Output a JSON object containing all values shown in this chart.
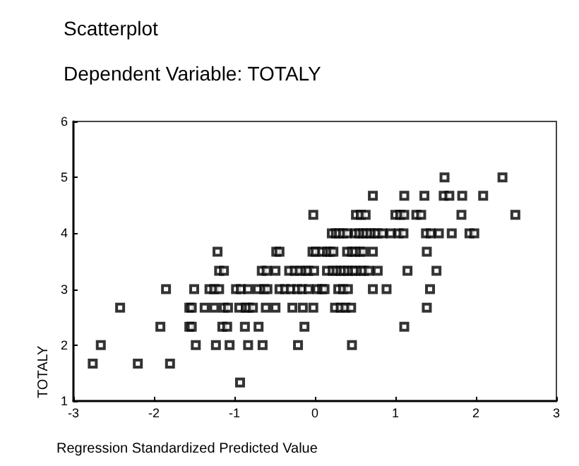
{
  "chart_data": {
    "type": "scatter",
    "title": "Scatterplot",
    "subtitle": "Dependent Variable: TOTALY",
    "xlabel": "Regression Standardized Predicted Value",
    "ylabel": "TOTALY",
    "xlim": [
      -3,
      3
    ],
    "ylim": [
      1,
      6
    ],
    "xticks": [
      -3,
      -2,
      -1,
      0,
      1,
      2,
      3
    ],
    "yticks": [
      1,
      2,
      3,
      4,
      5,
      6
    ],
    "grid": false,
    "marker": "square",
    "series": [
      {
        "color": "#000000",
        "x": [
          -2.76,
          -2.2,
          -1.8,
          -0.93,
          -2.66,
          -1.48,
          -1.23,
          -1.06,
          -0.83,
          -0.65,
          -0.21,
          0.46,
          -1.92,
          -1.56,
          -1.53,
          -1.15,
          -1.09,
          -0.87,
          -0.7,
          -0.13,
          1.11,
          -2.42,
          -1.56,
          -1.53,
          -1.37,
          -1.25,
          -1.13,
          -1.08,
          -0.94,
          -0.86,
          -0.82,
          -0.77,
          -0.61,
          -0.49,
          -0.28,
          -0.15,
          -0.02,
          0.25,
          0.32,
          0.38,
          0.45,
          1.39,
          -1.85,
          -1.5,
          -1.31,
          -1.25,
          -1.19,
          -0.98,
          -0.92,
          -0.83,
          -0.71,
          -0.63,
          -0.59,
          -0.44,
          -0.37,
          -0.3,
          -0.22,
          -0.16,
          -0.08,
          0.03,
          0.09,
          0.12,
          0.29,
          0.35,
          0.41,
          0.72,
          0.89,
          1.43,
          -1.19,
          -1.13,
          -0.66,
          -0.6,
          -0.49,
          -0.32,
          -0.25,
          -0.19,
          -0.12,
          -0.08,
          -0.01,
          0.15,
          0.22,
          0.27,
          0.32,
          0.36,
          0.41,
          0.46,
          0.5,
          0.57,
          0.61,
          0.67,
          0.78,
          1.15,
          1.51,
          -1.21,
          -0.48,
          -0.44,
          -0.03,
          0.01,
          0.09,
          0.15,
          0.19,
          0.23,
          0.4,
          0.46,
          0.5,
          0.56,
          0.6,
          0.72,
          1.39,
          0.21,
          0.26,
          0.3,
          0.35,
          0.4,
          0.5,
          0.55,
          0.6,
          0.64,
          0.69,
          0.74,
          0.78,
          0.84,
          0.94,
          1.04,
          1.1,
          1.38,
          1.44,
          1.54,
          1.7,
          1.92,
          1.98,
          -0.02,
          0.51,
          0.57,
          0.63,
          1.0,
          1.06,
          1.11,
          1.26,
          1.32,
          1.82,
          2.49,
          0.72,
          1.11,
          1.36,
          1.6,
          1.67,
          1.83,
          2.09,
          1.61,
          2.33
        ],
        "values": [
          1.67,
          1.67,
          1.67,
          1.33,
          2,
          2,
          2,
          2,
          2,
          2,
          2,
          2,
          2.33,
          2.33,
          2.33,
          2.33,
          2.33,
          2.33,
          2.33,
          2.33,
          2.33,
          2.67,
          2.67,
          2.67,
          2.67,
          2.67,
          2.67,
          2.67,
          2.67,
          2.67,
          2.67,
          2.67,
          2.67,
          2.67,
          2.67,
          2.67,
          2.67,
          2.67,
          2.67,
          2.67,
          2.67,
          2.67,
          3,
          3,
          3,
          3,
          3,
          3,
          3,
          3,
          3,
          3,
          3,
          3,
          3,
          3,
          3,
          3,
          3,
          3,
          3,
          3,
          3,
          3,
          3,
          3,
          3,
          3,
          3.33,
          3.33,
          3.33,
          3.33,
          3.33,
          3.33,
          3.33,
          3.33,
          3.33,
          3.33,
          3.33,
          3.33,
          3.33,
          3.33,
          3.33,
          3.33,
          3.33,
          3.33,
          3.33,
          3.33,
          3.33,
          3.33,
          3.33,
          3.33,
          3.33,
          3.67,
          3.67,
          3.67,
          3.67,
          3.67,
          3.67,
          3.67,
          3.67,
          3.67,
          3.67,
          3.67,
          3.67,
          3.67,
          3.67,
          3.67,
          3.67,
          4,
          4,
          4,
          4,
          4,
          4,
          4,
          4,
          4,
          4,
          4,
          4,
          4,
          4,
          4,
          4,
          4,
          4,
          4,
          4,
          4,
          4,
          4.33,
          4.33,
          4.33,
          4.33,
          4.33,
          4.33,
          4.33,
          4.33,
          4.33,
          4.33,
          4.33,
          4.67,
          4.67,
          4.67,
          4.67,
          4.67,
          4.67,
          4.67,
          5,
          5
        ]
      }
    ]
  }
}
